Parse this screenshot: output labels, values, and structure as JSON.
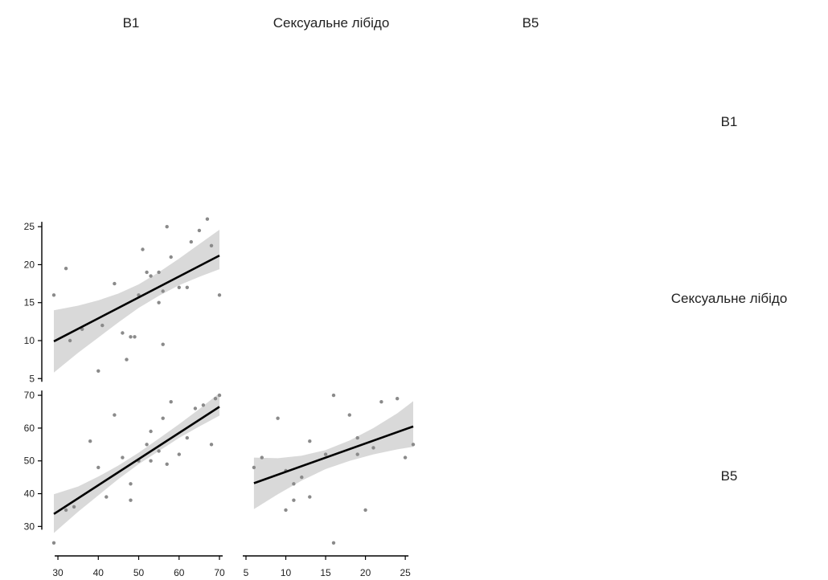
{
  "variables": [
    "В1",
    "Сексуальне лібідо",
    "В5"
  ],
  "chart_data": {
    "type": "scatter",
    "layout": "correlation-matrix-lower",
    "column_labels": [
      "В1",
      "Сексуальне лібідо",
      "В5"
    ],
    "row_labels": [
      "В1",
      "Сексуальне лібідо",
      "В5"
    ],
    "panels": [
      {
        "id": "libido_vs_b1",
        "row": 1,
        "col": 0,
        "xlim": [
          28,
          70
        ],
        "ylim": [
          4.5,
          26.5
        ],
        "x_ticks": [],
        "y_ticks": [
          5,
          10,
          15,
          20,
          25
        ],
        "fit": {
          "x": [
            29,
            70
          ],
          "y": [
            9.9,
            21.2
          ]
        },
        "ci_band": {
          "x": [
            29,
            35,
            40,
            45,
            50,
            55,
            60,
            65,
            70
          ],
          "lower": [
            5.8,
            8.4,
            10.4,
            12.4,
            14.3,
            15.9,
            17.3,
            18.4,
            19.4
          ],
          "upper": [
            14.0,
            14.6,
            15.3,
            16.2,
            17.4,
            19.0,
            20.8,
            22.7,
            24.6
          ]
        },
        "points": {
          "x": [
            29,
            32,
            33,
            36,
            40,
            41,
            44,
            46,
            48,
            49,
            50,
            51,
            52,
            53,
            55,
            56,
            57,
            58,
            60,
            62,
            63,
            65,
            67,
            68,
            70,
            55,
            56,
            47
          ],
          "y": [
            16,
            19.5,
            10,
            11.5,
            6,
            12,
            17.5,
            11,
            10.5,
            10.5,
            16,
            22,
            19,
            18.5,
            15,
            9.5,
            25,
            21,
            17,
            17,
            23,
            24.5,
            26,
            22.5,
            16,
            19,
            16.5,
            7.5
          ]
        }
      },
      {
        "id": "b5_vs_b1",
        "row": 2,
        "col": 0,
        "xlim": [
          28,
          70
        ],
        "ylim": [
          22,
          71
        ],
        "x_ticks": [
          30,
          40,
          50,
          60,
          70
        ],
        "y_ticks": [
          30,
          40,
          50,
          60,
          70
        ],
        "fit": {
          "x": [
            29,
            70
          ],
          "y": [
            33.8,
            66.5
          ]
        },
        "ci_band": {
          "x": [
            29,
            35,
            40,
            45,
            50,
            55,
            60,
            65,
            70
          ],
          "lower": [
            28.0,
            34.5,
            39.5,
            44.5,
            49.0,
            53.0,
            57.0,
            60.5,
            63.8
          ],
          "upper": [
            39.8,
            42.2,
            45.2,
            48.6,
            52.5,
            56.8,
            61.2,
            65.8,
            70.7
          ]
        },
        "points": {
          "x": [
            29,
            32,
            34,
            38,
            40,
            42,
            44,
            46,
            48,
            48,
            50,
            52,
            53,
            55,
            56,
            57,
            58,
            60,
            62,
            64,
            66,
            68,
            69,
            70,
            53
          ],
          "y": [
            25,
            35,
            36,
            56,
            48,
            39,
            64,
            51,
            38,
            43,
            50,
            55,
            59,
            53,
            63,
            49,
            68,
            52,
            57,
            66,
            67,
            55,
            69,
            70,
            50
          ]
        }
      },
      {
        "id": "b5_vs_libido",
        "row": 2,
        "col": 1,
        "xlim": [
          5,
          26.5
        ],
        "ylim": [
          22,
          71
        ],
        "x_ticks": [
          5,
          10,
          15,
          20,
          25
        ],
        "y_ticks": [],
        "fit": {
          "x": [
            6,
            26
          ],
          "y": [
            43.2,
            60.5
          ]
        },
        "ci_band": {
          "x": [
            6,
            9,
            12,
            15,
            18,
            21,
            24,
            26
          ],
          "lower": [
            35.3,
            39.8,
            44.0,
            47.5,
            50.0,
            52.0,
            53.5,
            54.3
          ],
          "upper": [
            51.0,
            50.8,
            51.6,
            53.3,
            56.2,
            60.0,
            64.5,
            68.2
          ]
        },
        "points": {
          "x": [
            6,
            7,
            9,
            10,
            11,
            11,
            12,
            13,
            15,
            16,
            16,
            18,
            19,
            19,
            20,
            22,
            24,
            25,
            26,
            10,
            13,
            21
          ],
          "y": [
            48,
            51,
            63,
            35,
            38,
            43,
            45,
            56,
            52,
            25,
            70,
            64,
            57,
            52,
            35,
            68,
            69,
            51,
            55,
            47,
            39,
            54
          ]
        }
      }
    ],
    "grid": false,
    "legend": "none"
  }
}
